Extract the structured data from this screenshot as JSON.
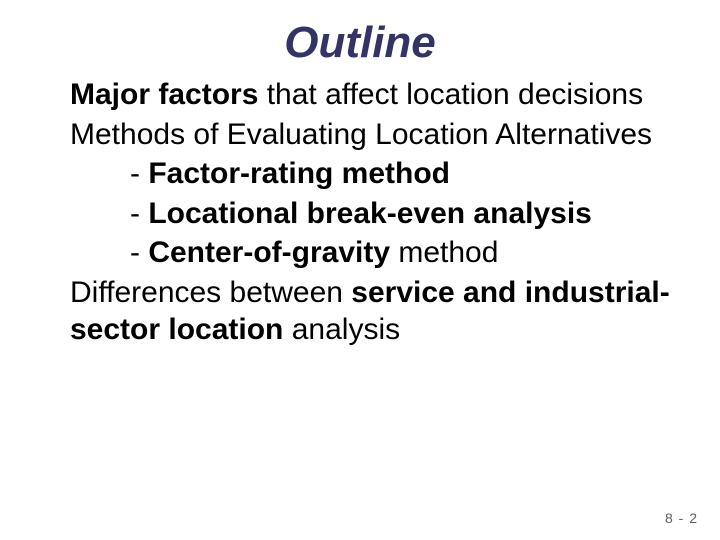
{
  "title": "Outline",
  "lines": {
    "l1a": "Major factors",
    "l1b": " that affect location decisions",
    "l2": "Methods of Evaluating Location Alternatives",
    "l3a": "- ",
    "l3b": "Factor-rating method",
    "l4a": "- ",
    "l4b": "Locational break-even analysis",
    "l5a": "- ",
    "l5b": "Center-of-gravity",
    "l5c": " method",
    "l6a": "Differences between ",
    "l6b": "service and industrial-sector location",
    "l6c": " analysis"
  },
  "footer": "8 - 2",
  "colors": {
    "title": "#333366",
    "text": "#000000",
    "footer": "#606060",
    "background": "#ffffff"
  },
  "typography": {
    "title_fontsize": 44,
    "body_fontsize": 30,
    "footer_fontsize": 14,
    "title_style": "bold italic"
  }
}
